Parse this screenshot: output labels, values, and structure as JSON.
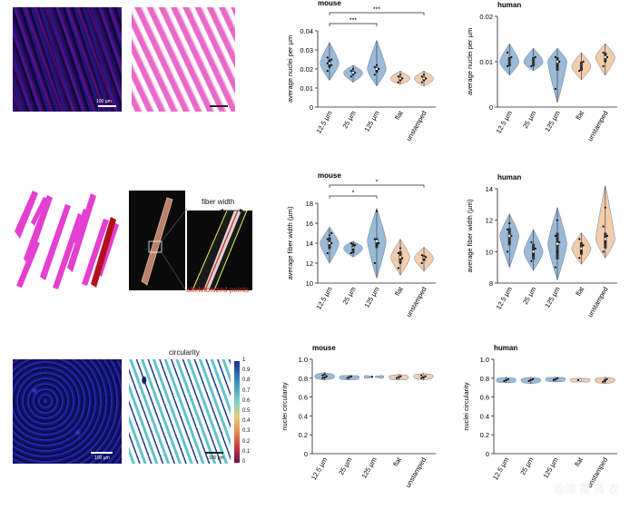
{
  "images": {
    "scale_label": "100 µm",
    "circ_scale_label": "100 µm",
    "fiber_width_label": "fiber width",
    "skeleton_label": "skeletonized points",
    "circularity_title": "circularity",
    "colorbar_ticks": [
      "1",
      "0.9",
      "0.8",
      "0.7",
      "0.6",
      "0.5",
      "0.4",
      "0.3",
      "0.2",
      "0.1",
      "0"
    ]
  },
  "colors": {
    "mouse_blue": "#8fb3d1",
    "flat_orange": "#f2c6a3",
    "fiber_magenta": "#e040c8",
    "nuclei_blue": "#1b1f8f",
    "skeleton_red": "#e0312b"
  },
  "watermark": "@阔 覆 务 农",
  "chart_data": [
    {
      "id": "nuclei-mouse",
      "type": "violin",
      "title": "mouse",
      "categories": [
        "12.5 µm",
        "25 µm",
        "125 µm",
        "flat",
        "unstamped"
      ],
      "ylabel": "average nuclei per µm",
      "ylim": [
        0,
        0.04
      ],
      "yticks": [
        "0",
        "0.01",
        "0.02",
        "0.03",
        "0.04"
      ],
      "ytick_values": [
        0,
        0.01,
        0.02,
        0.03,
        0.04
      ],
      "series": [
        {
          "median": 0.023,
          "min": 0.014,
          "max": 0.034,
          "q1": 0.021,
          "q3": 0.025,
          "points": [
            0.019,
            0.021,
            0.022,
            0.023,
            0.024,
            0.025,
            0.026
          ]
        },
        {
          "median": 0.018,
          "min": 0.013,
          "max": 0.022,
          "q1": 0.017,
          "q3": 0.019,
          "points": [
            0.016,
            0.017,
            0.018,
            0.019,
            0.02
          ]
        },
        {
          "median": 0.02,
          "min": 0.011,
          "max": 0.035,
          "q1": 0.018,
          "q3": 0.021,
          "points": [
            0.017,
            0.019,
            0.02,
            0.021,
            0.022
          ]
        },
        {
          "median": 0.015,
          "min": 0.012,
          "max": 0.019,
          "q1": 0.014,
          "q3": 0.016,
          "points": [
            0.013,
            0.014,
            0.015,
            0.016,
            0.017
          ]
        },
        {
          "median": 0.015,
          "min": 0.011,
          "max": 0.019,
          "q1": 0.014,
          "q3": 0.016,
          "points": [
            0.013,
            0.014,
            0.015,
            0.016,
            0.017
          ]
        }
      ],
      "annotations": [
        "***",
        "***"
      ]
    },
    {
      "id": "nuclei-human",
      "type": "violin",
      "title": "human",
      "categories": [
        "12.5 µm",
        "25 µm",
        "125 µm",
        "flat",
        "unstamped"
      ],
      "ylabel": "average nuclei per µm",
      "ylim": [
        0,
        0.02
      ],
      "yticks": [
        "0",
        "0.01",
        "0.02"
      ],
      "ytick_values": [
        0,
        0.01,
        0.02
      ],
      "series": [
        {
          "median": 0.01,
          "min": 0.007,
          "max": 0.014,
          "q1": 0.009,
          "q3": 0.011,
          "points": [
            0.009,
            0.01,
            0.011,
            0.012
          ]
        },
        {
          "median": 0.01,
          "min": 0.008,
          "max": 0.013,
          "q1": 0.009,
          "q3": 0.011,
          "points": [
            0.009,
            0.01,
            0.011
          ]
        },
        {
          "median": 0.01,
          "min": 0.001,
          "max": 0.013,
          "q1": 0.008,
          "q3": 0.011,
          "points": [
            0.004,
            0.009,
            0.01,
            0.011
          ]
        },
        {
          "median": 0.009,
          "min": 0.006,
          "max": 0.012,
          "q1": 0.008,
          "q3": 0.01,
          "points": [
            0.008,
            0.009,
            0.01
          ]
        },
        {
          "median": 0.011,
          "min": 0.007,
          "max": 0.014,
          "q1": 0.01,
          "q3": 0.012,
          "points": [
            0.009,
            0.01,
            0.011,
            0.012
          ]
        }
      ],
      "annotations": []
    },
    {
      "id": "fiber-mouse",
      "type": "violin",
      "title": "mouse",
      "categories": [
        "12.5 µm",
        "25 µm",
        "125 µm",
        "flat",
        "unstamped"
      ],
      "ylabel": "average fiber width (µm)",
      "ylim": [
        10,
        18
      ],
      "yticks": [
        "10",
        "12",
        "14",
        "16",
        "18"
      ],
      "ytick_values": [
        10,
        12,
        14,
        16,
        18
      ],
      "series": [
        {
          "median": 14.0,
          "min": 12.0,
          "max": 15.6,
          "q1": 13.4,
          "q3": 14.6,
          "points": [
            13.0,
            13.6,
            14.0,
            14.4,
            14.8,
            15.0
          ]
        },
        {
          "median": 13.5,
          "min": 12.6,
          "max": 14.2,
          "q1": 13.0,
          "q3": 14.0,
          "points": [
            13.0,
            13.4,
            13.8,
            14.0
          ]
        },
        {
          "median": 14.2,
          "min": 10.5,
          "max": 17.5,
          "q1": 13.5,
          "q3": 14.5,
          "points": [
            12.0,
            13.8,
            14.0,
            14.4,
            17.2
          ]
        },
        {
          "median": 12.6,
          "min": 10.8,
          "max": 14.4,
          "q1": 12.0,
          "q3": 13.2,
          "points": [
            11.5,
            12.0,
            12.5,
            13.0,
            13.5
          ]
        },
        {
          "median": 12.5,
          "min": 11.2,
          "max": 13.6,
          "q1": 12.2,
          "q3": 12.8,
          "points": [
            12.0,
            12.4,
            12.6,
            12.8
          ]
        }
      ],
      "annotations": [
        "*",
        "*"
      ]
    },
    {
      "id": "fiber-human",
      "type": "violin",
      "title": "human",
      "categories": [
        "12.5 µm",
        "25 µm",
        "125 µm",
        "flat",
        "unstamped"
      ],
      "ylabel": "average fiber width (µm)",
      "ylim": [
        8,
        14
      ],
      "yticks": [
        "8",
        "10",
        "12",
        "14"
      ],
      "ytick_values": [
        8,
        10,
        12,
        14
      ],
      "series": [
        {
          "median": 11.0,
          "min": 9.0,
          "max": 12.4,
          "q1": 10.4,
          "q3": 11.5,
          "points": [
            10.0,
            10.6,
            11.0,
            11.4,
            11.8
          ]
        },
        {
          "median": 10.0,
          "min": 8.8,
          "max": 11.4,
          "q1": 9.5,
          "q3": 10.5,
          "points": [
            9.4,
            9.8,
            10.2,
            10.6
          ]
        },
        {
          "median": 10.5,
          "min": 8.2,
          "max": 12.8,
          "q1": 9.5,
          "q3": 11.2,
          "points": [
            9.0,
            10.0,
            10.6,
            11.0,
            12.0
          ]
        },
        {
          "median": 10.2,
          "min": 9.2,
          "max": 11.2,
          "q1": 9.8,
          "q3": 10.6,
          "points": [
            9.6,
            10.0,
            10.4,
            10.8
          ]
        },
        {
          "median": 10.8,
          "min": 9.6,
          "max": 14.2,
          "q1": 10.2,
          "q3": 11.2,
          "points": [
            10.0,
            10.6,
            11.0,
            11.6,
            12.8
          ]
        }
      ],
      "annotations": []
    },
    {
      "id": "circ-mouse",
      "type": "violin",
      "title": "mouse",
      "categories": [
        "12.5 µm",
        "25 µm",
        "125 µm",
        "flat",
        "unstamped"
      ],
      "ylabel": "nuclei circularity",
      "ylim": [
        0,
        1.0
      ],
      "yticks": [
        "0",
        "0.2",
        "0.4",
        "0.6",
        "0.8",
        "1.0"
      ],
      "ytick_values": [
        0,
        0.2,
        0.4,
        0.6,
        0.8,
        1.0
      ],
      "series": [
        {
          "median": 0.82,
          "min": 0.78,
          "max": 0.86,
          "q1": 0.8,
          "q3": 0.84,
          "points": [
            0.8,
            0.81,
            0.82,
            0.83,
            0.84
          ]
        },
        {
          "median": 0.81,
          "min": 0.78,
          "max": 0.83,
          "q1": 0.8,
          "q3": 0.82,
          "points": [
            0.8,
            0.81,
            0.82
          ]
        },
        {
          "median": 0.815,
          "min": 0.81,
          "max": 0.82,
          "q1": 0.81,
          "q3": 0.82,
          "points": [
            0.815
          ]
        },
        {
          "median": 0.81,
          "min": 0.78,
          "max": 0.84,
          "q1": 0.8,
          "q3": 0.82,
          "points": [
            0.8,
            0.81,
            0.82
          ]
        },
        {
          "median": 0.82,
          "min": 0.78,
          "max": 0.85,
          "q1": 0.8,
          "q3": 0.83,
          "points": [
            0.8,
            0.81,
            0.82,
            0.83
          ]
        }
      ],
      "annotations": []
    },
    {
      "id": "circ-human",
      "type": "violin",
      "title": "human",
      "categories": [
        "12.5 µm",
        "25 µm",
        "125 µm",
        "flat",
        "unstamped"
      ],
      "ylabel": "nuclei circularity",
      "ylim": [
        0,
        1.0
      ],
      "yticks": [
        "0",
        "0.2",
        "0.4",
        "0.6",
        "0.8",
        "1.0"
      ],
      "ytick_values": [
        0,
        0.2,
        0.4,
        0.6,
        0.8,
        1.0
      ],
      "series": [
        {
          "median": 0.78,
          "min": 0.75,
          "max": 0.81,
          "q1": 0.77,
          "q3": 0.79,
          "points": [
            0.77,
            0.78,
            0.79
          ]
        },
        {
          "median": 0.78,
          "min": 0.74,
          "max": 0.81,
          "q1": 0.77,
          "q3": 0.79,
          "points": [
            0.77,
            0.78,
            0.79
          ]
        },
        {
          "median": 0.79,
          "min": 0.76,
          "max": 0.81,
          "q1": 0.78,
          "q3": 0.8,
          "points": [
            0.78,
            0.79,
            0.8
          ]
        },
        {
          "median": 0.78,
          "min": 0.76,
          "max": 0.8,
          "q1": 0.77,
          "q3": 0.79,
          "points": [
            0.78
          ]
        },
        {
          "median": 0.78,
          "min": 0.74,
          "max": 0.81,
          "q1": 0.76,
          "q3": 0.79,
          "points": [
            0.76,
            0.78,
            0.79
          ]
        }
      ],
      "annotations": []
    }
  ]
}
